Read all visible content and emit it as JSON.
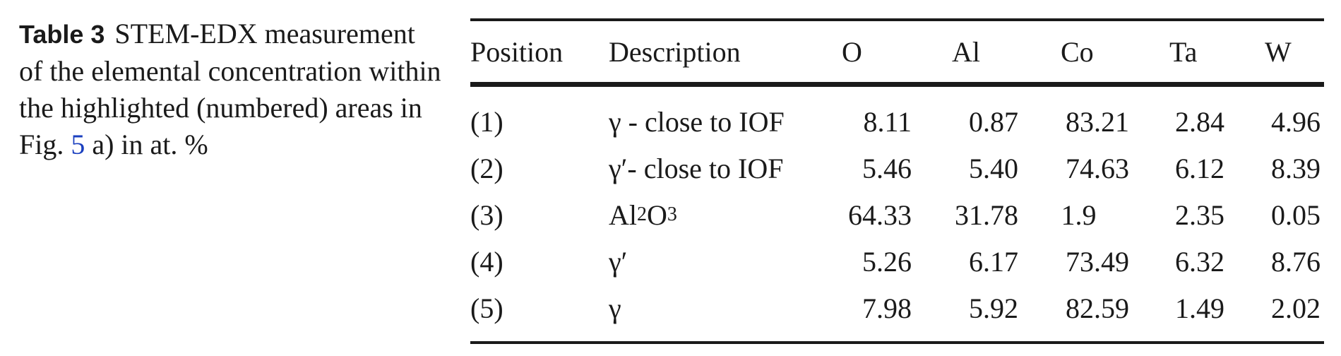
{
  "caption": {
    "label": "Table 3",
    "text_before_ref": "STEM-EDX measurement of the elemental concentration within the highlighted (numbered) areas in Fig.",
    "figure_ref": "5",
    "text_after_ref": "a) in at. %"
  },
  "table": {
    "headers": {
      "position": "Position",
      "description": "Description",
      "o": "O",
      "al": "Al",
      "co": "Co",
      "ta": "Ta",
      "w": "W"
    },
    "rows": [
      {
        "position": "(1)",
        "description": "γ - close to IOF",
        "o": "8.11",
        "al": "0.87",
        "co": "83.21",
        "ta": "2.84",
        "w": "4.96"
      },
      {
        "position": "(2)",
        "description": "γ′- close to IOF",
        "o": "5.46",
        "al": "5.40",
        "co": "74.63",
        "ta": "6.12",
        "w": "8.39"
      },
      {
        "position": "(3)",
        "description_parts": {
          "al": "Al",
          "al_sub": "2",
          "o": "O",
          "o_sub": "3"
        },
        "o": "64.33",
        "al": "31.78",
        "co": "1.9",
        "ta": "2.35",
        "w": "0.05"
      },
      {
        "position": "(4)",
        "description": "γ′",
        "o": "5.26",
        "al": "6.17",
        "co": "73.49",
        "ta": "6.32",
        "w": "8.76"
      },
      {
        "position": "(5)",
        "description": "γ",
        "o": "7.98",
        "al": "5.92",
        "co": "82.59",
        "ta": "1.49",
        "w": "2.02"
      }
    ]
  }
}
